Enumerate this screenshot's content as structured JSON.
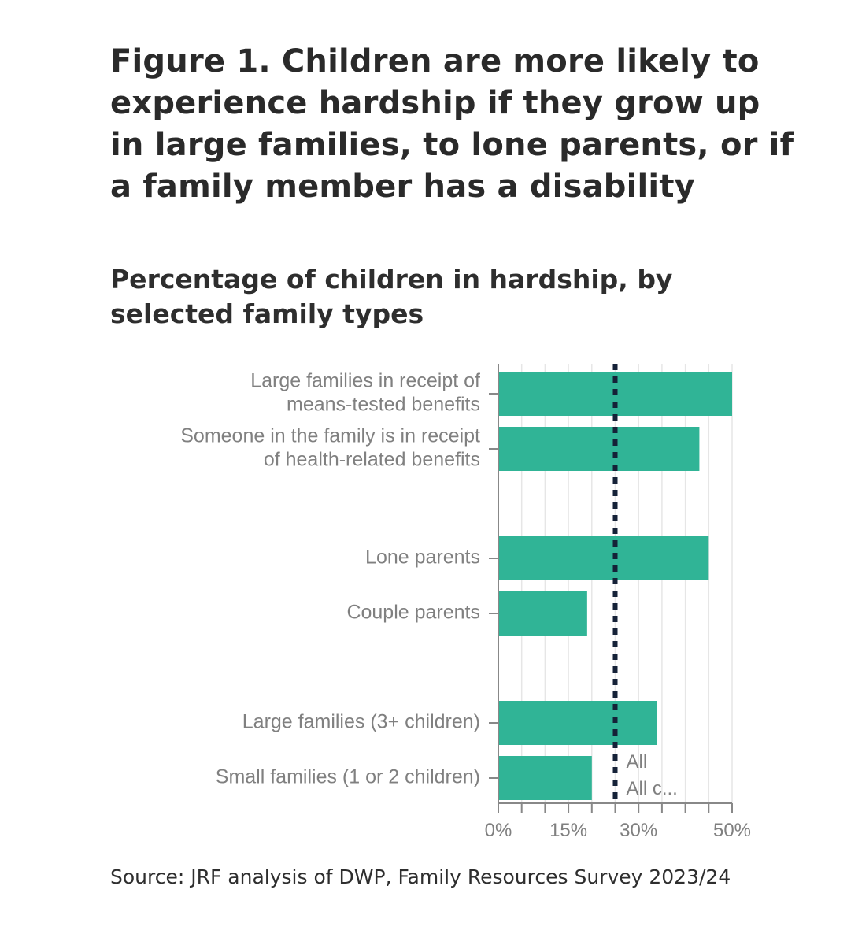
{
  "title": "Figure 1. Children are more likely to experience hardship if they grow up in large families, to lone parents, or if a family member has a disability",
  "subtitle": "Percentage of children in hardship, by selected family types",
  "source": "Source: JRF analysis of DWP, Family Resources Survey 2023/24",
  "colors": {
    "bar": "#30b496",
    "reference_line": "#152238",
    "grid": "#e6e6e6",
    "axis": "#888888"
  },
  "chart_data": {
    "type": "bar",
    "orientation": "horizontal",
    "title": "Figure 1. Children are more likely to experience hardship if they grow up in large families, to lone parents, or if a family member has a disability",
    "subtitle": "Percentage of children in hardship, by selected family types",
    "categories": [
      [
        "Large families in receipt of",
        "means-tested benefits"
      ],
      [
        "Someone in the family is in receipt",
        "of health-related benefits"
      ],
      [
        "Lone parents"
      ],
      [
        "Couple parents"
      ],
      [
        "Large families (3+ children)"
      ],
      [
        "Small families (1 or 2 children)"
      ]
    ],
    "groups": [
      [
        0,
        1
      ],
      [
        2,
        3
      ],
      [
        4,
        5
      ]
    ],
    "values": [
      50,
      43,
      45,
      19,
      34,
      20
    ],
    "xlim": [
      0,
      50
    ],
    "x_ticks": [
      0,
      5,
      10,
      15,
      20,
      25,
      30,
      35,
      40,
      45,
      50
    ],
    "x_tick_labels": [
      {
        "value": 0,
        "label": "0%"
      },
      {
        "value": 15,
        "label": "15%"
      },
      {
        "value": 30,
        "label": "30%"
      },
      {
        "value": 50,
        "label": "50%"
      }
    ],
    "reference_line": {
      "value": 25,
      "style": "dotted",
      "labels": [
        "All",
        "All c..."
      ]
    },
    "grid": true,
    "legend": "none"
  }
}
